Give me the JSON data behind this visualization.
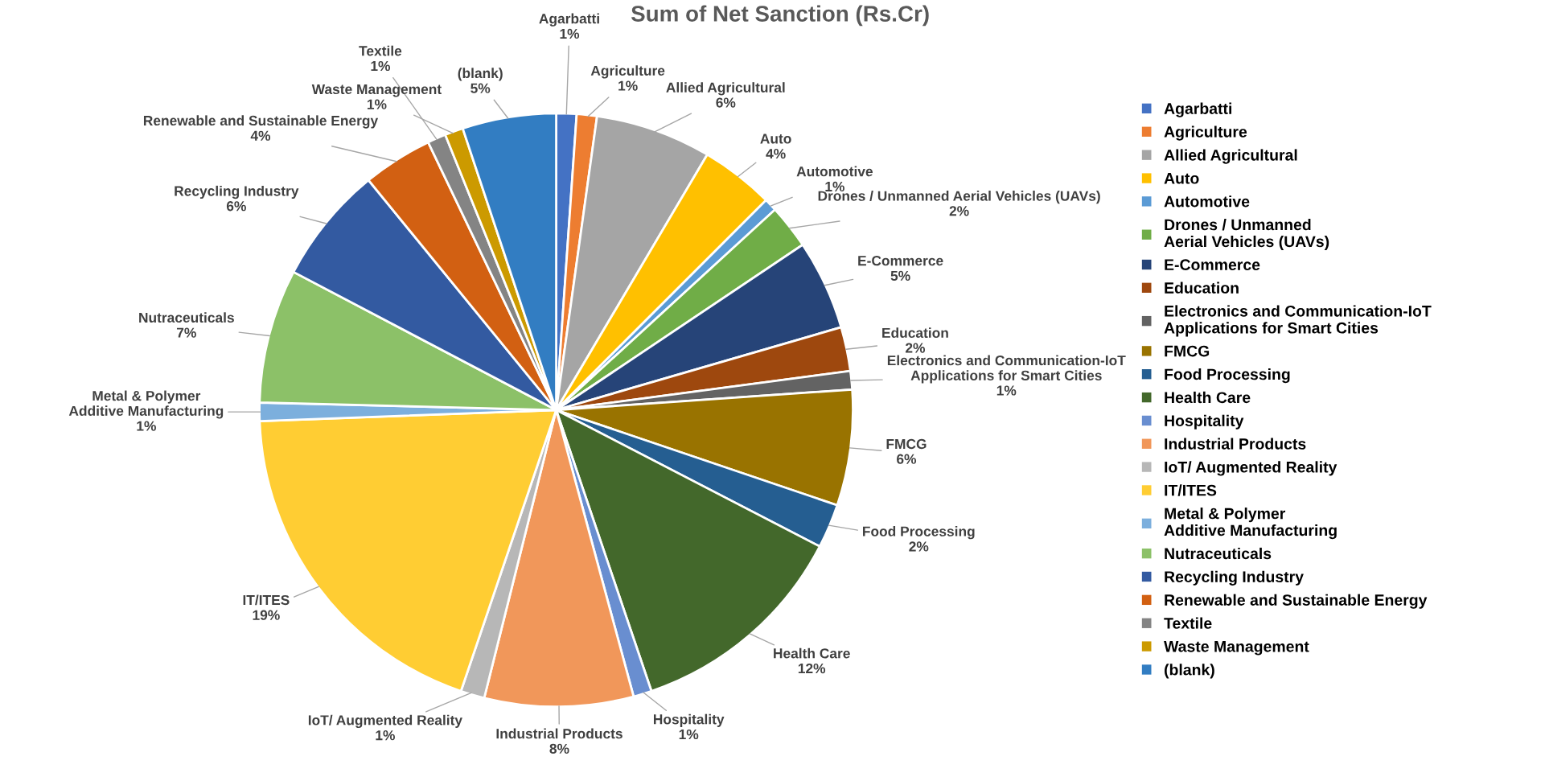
{
  "chart_data": {
    "type": "pie",
    "title": "Sum of Net Sanction (Rs.Cr)",
    "categories": [
      "Agarbatti",
      "Agriculture",
      "Allied Agricultural",
      "Auto",
      "Automotive",
      "Drones / Unmanned Aerial Vehicles (UAVs)",
      "E-Commerce",
      "Education",
      "Electronics and Communication-IoT Applications for Smart Cities",
      "FMCG",
      "Food Processing",
      "Health Care",
      "Hospitality",
      "Industrial Products",
      "IoT/ Augmented Reality",
      "IT/ITES",
      "Metal & Polymer Additive Manufacturing",
      "Nutraceuticals",
      "Recycling Industry",
      "Renewable and Sustainable Energy",
      "Textile",
      "Waste Management",
      "(blank)"
    ],
    "values": [
      1.1,
      1.1,
      6.3,
      4.0,
      0.7,
      2.4,
      4.9,
      2.4,
      1.0,
      6.3,
      2.4,
      12.2,
      1.0,
      8.1,
      1.3,
      19.2,
      1.0,
      7.3,
      6.4,
      3.8,
      1.0,
      1.0,
      5.1
    ],
    "value_labels": [
      "1%",
      "1%",
      "6%",
      "4%",
      "1%",
      "2%",
      "5%",
      "2%",
      "1%",
      "6%",
      "2%",
      "12%",
      "1%",
      "8%",
      "1%",
      "19%",
      "1%",
      "7%",
      "6%",
      "4%",
      "1%",
      "1%",
      "5%"
    ],
    "colors": [
      "#4472c4",
      "#ed7d31",
      "#a5a5a5",
      "#ffc000",
      "#5b9bd5",
      "#70ad47",
      "#264478",
      "#9e480e",
      "#636363",
      "#997300",
      "#255e91",
      "#43682b",
      "#698ed0",
      "#f1975a",
      "#b7b7b7",
      "#ffcd33",
      "#7cafdd",
      "#8cc168",
      "#335aa1",
      "#d26012",
      "#848484",
      "#cc9a00",
      "#327dc2"
    ],
    "legend": "right"
  }
}
